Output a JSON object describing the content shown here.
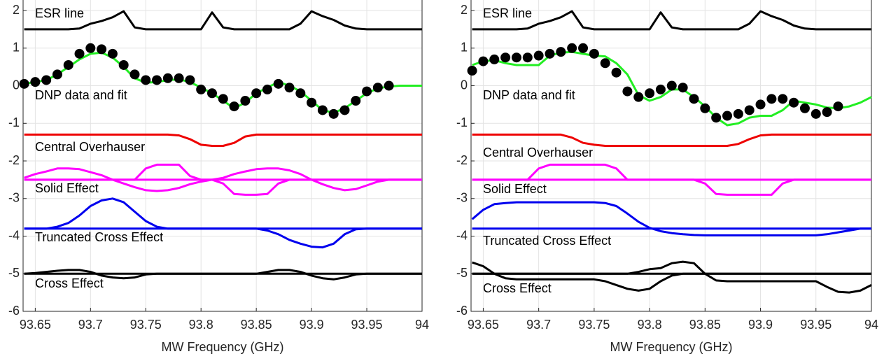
{
  "chart_data": [
    {
      "type": "line",
      "xlabel": "MW Frequency (GHz)",
      "xlim": [
        93.639,
        94
      ],
      "ylim": [
        -6,
        2.28
      ],
      "xticks": [
        93.65,
        93.7,
        93.75,
        93.8,
        93.85,
        93.9,
        93.95,
        94
      ],
      "yticks": [
        -6,
        -5,
        -4,
        -3,
        -2,
        -1,
        0,
        1,
        2
      ],
      "grid": true,
      "annotations": [
        "ESR line",
        "DNP data and fit",
        "Central Overhauser",
        "Solid Effect",
        "Truncated Cross Effect",
        "Cross Effect"
      ],
      "x": [
        93.64,
        93.65,
        93.66,
        93.67,
        93.68,
        93.69,
        93.7,
        93.71,
        93.72,
        93.73,
        93.74,
        93.75,
        93.76,
        93.77,
        93.78,
        93.79,
        93.8,
        93.81,
        93.82,
        93.83,
        93.84,
        93.85,
        93.86,
        93.87,
        93.88,
        93.89,
        93.9,
        93.91,
        93.92,
        93.93,
        93.94,
        93.95,
        93.96,
        93.97,
        93.98,
        93.99,
        94
      ],
      "series": [
        {
          "color": "#000000",
          "values": [
            1.5,
            1.5,
            1.5,
            1.5,
            1.5,
            1.52,
            1.65,
            1.72,
            1.82,
            1.98,
            1.55,
            1.5,
            1.5,
            1.5,
            1.5,
            1.5,
            1.5,
            1.95,
            1.55,
            1.5,
            1.5,
            1.5,
            1.5,
            1.5,
            1.5,
            1.65,
            1.98,
            1.85,
            1.75,
            1.6,
            1.52,
            1.5,
            1.5,
            1.5,
            1.5,
            1.5,
            1.5
          ]
        },
        {
          "color": "#22ee22",
          "values": [
            0.05,
            0.1,
            0.15,
            0.3,
            0.5,
            0.7,
            0.85,
            0.88,
            0.75,
            0.5,
            0.2,
            0.08,
            0.1,
            0.15,
            0.17,
            0.1,
            -0.05,
            -0.2,
            -0.4,
            -0.6,
            -0.45,
            -0.2,
            -0.05,
            0.1,
            0,
            -0.15,
            -0.4,
            -0.65,
            -0.72,
            -0.6,
            -0.4,
            -0.2,
            -0.07,
            -0.02,
            0,
            0,
            0
          ]
        },
        {
          "color": "#000000",
          "style": "markers",
          "values": [
            0.05,
            0.1,
            0.15,
            0.3,
            0.55,
            0.85,
            1.0,
            0.97,
            0.85,
            0.55,
            0.3,
            0.15,
            0.15,
            0.2,
            0.2,
            0.15,
            -0.1,
            -0.2,
            -0.35,
            -0.55,
            -0.4,
            -0.2,
            -0.1,
            0.05,
            -0.05,
            -0.2,
            -0.45,
            -0.65,
            -0.75,
            -0.65,
            -0.4,
            -0.15,
            -0.05,
            0,
            null,
            null,
            null
          ]
        },
        {
          "color": "#ee0000",
          "values": [
            -1.3,
            -1.3,
            -1.3,
            -1.3,
            -1.3,
            -1.3,
            -1.3,
            -1.3,
            -1.3,
            -1.3,
            -1.3,
            -1.3,
            -1.3,
            -1.3,
            -1.32,
            -1.42,
            -1.57,
            -1.6,
            -1.6,
            -1.52,
            -1.35,
            -1.3,
            -1.3,
            -1.3,
            -1.3,
            -1.3,
            -1.3,
            -1.3,
            -1.3,
            -1.3,
            -1.3,
            -1.3,
            -1.3,
            -1.3,
            -1.3,
            -1.3,
            -1.3
          ]
        },
        {
          "color": "#ff00ff",
          "values": [
            -2.5,
            -2.5,
            -2.5,
            -2.5,
            -2.5,
            -2.5,
            -2.5,
            -2.5,
            -2.5,
            -2.5,
            -2.5,
            -2.5,
            -2.5,
            -2.5,
            -2.5,
            -2.5,
            -2.5,
            -2.5,
            -2.5,
            -2.5,
            -2.5,
            -2.5,
            -2.5,
            -2.5,
            -2.5,
            -2.5,
            -2.5,
            -2.5,
            -2.5,
            -2.5,
            -2.5,
            -2.5,
            -2.5,
            -2.5,
            -2.5,
            -2.5,
            -2.5
          ]
        },
        {
          "color": "#ff00ff",
          "values": [
            -2.45,
            -2.35,
            -2.28,
            -2.2,
            -2.2,
            -2.22,
            -2.3,
            -2.38,
            -2.5,
            -2.6,
            -2.7,
            -2.78,
            -2.8,
            -2.78,
            -2.72,
            -2.62,
            -2.55,
            -2.5,
            -2.45,
            -2.35,
            -2.28,
            -2.22,
            -2.2,
            -2.2,
            -2.25,
            -2.35,
            -2.5,
            -2.62,
            -2.72,
            -2.78,
            -2.75,
            -2.65,
            -2.55,
            -2.5,
            -2.5,
            -2.5,
            -2.5
          ]
        },
        {
          "color": "#ff00ff",
          "values": [
            -2.5,
            -2.5,
            -2.5,
            -2.5,
            -2.5,
            -2.5,
            -2.5,
            -2.5,
            -2.5,
            -2.5,
            -2.5,
            -2.2,
            -2.1,
            -2.1,
            -2.1,
            -2.4,
            -2.5,
            -2.5,
            -2.6,
            -2.88,
            -2.9,
            -2.9,
            -2.88,
            -2.6,
            -2.5,
            -2.5,
            -2.5,
            -2.5,
            -2.5,
            -2.5,
            -2.5,
            -2.5,
            -2.5,
            -2.5,
            -2.5,
            -2.5,
            -2.5
          ]
        },
        {
          "color": "#0000ee",
          "values": [
            -3.8,
            -3.8,
            -3.8,
            -3.8,
            -3.8,
            -3.8,
            -3.8,
            -3.8,
            -3.8,
            -3.8,
            -3.8,
            -3.8,
            -3.8,
            -3.8,
            -3.8,
            -3.8,
            -3.8,
            -3.8,
            -3.8,
            -3.8,
            -3.8,
            -3.8,
            -3.8,
            -3.8,
            -3.8,
            -3.8,
            -3.8,
            -3.8,
            -3.8,
            -3.8,
            -3.8,
            -3.8,
            -3.8,
            -3.8,
            -3.8,
            -3.8,
            -3.8
          ]
        },
        {
          "color": "#0000ee",
          "values": [
            -3.8,
            -3.8,
            -3.8,
            -3.75,
            -3.65,
            -3.45,
            -3.2,
            -3.05,
            -3.0,
            -3.1,
            -3.35,
            -3.6,
            -3.75,
            -3.8,
            -3.8,
            -3.8,
            -3.8,
            -3.8,
            -3.8,
            -3.8,
            -3.8,
            -3.8,
            -3.85,
            -3.95,
            -4.1,
            -4.2,
            -4.28,
            -4.3,
            -4.2,
            -3.95,
            -3.82,
            -3.8,
            -3.8,
            -3.8,
            -3.8,
            -3.8,
            -3.8
          ]
        },
        {
          "color": "#000000",
          "values": [
            -5,
            -5,
            -5,
            -5,
            -5,
            -5,
            -5,
            -5,
            -5,
            -5,
            -5,
            -5,
            -5,
            -5,
            -5,
            -5,
            -5,
            -5,
            -5,
            -5,
            -5,
            -5,
            -5,
            -5,
            -5,
            -5,
            -5,
            -5,
            -5,
            -5,
            -5,
            -5,
            -5,
            -5,
            -5,
            -5,
            -5
          ]
        },
        {
          "color": "#000000",
          "values": [
            -5,
            -4.98,
            -4.95,
            -4.92,
            -4.9,
            -4.9,
            -4.95,
            -5.05,
            -5.1,
            -5.12,
            -5.1,
            -5.02,
            -5,
            -5,
            -5,
            -5,
            -5,
            -5,
            -5,
            -5,
            -5,
            -5,
            -4.95,
            -4.9,
            -4.9,
            -4.95,
            -5.05,
            -5.12,
            -5.15,
            -5.1,
            -5.02,
            -5,
            -5,
            -5,
            -5,
            -5,
            -5
          ]
        }
      ]
    },
    {
      "type": "line",
      "xlabel": "MW Frequency (GHz)",
      "xlim": [
        93.639,
        94
      ],
      "ylim": [
        -6,
        2.28
      ],
      "xticks": [
        93.65,
        93.7,
        93.75,
        93.8,
        93.85,
        93.9,
        93.95,
        94
      ],
      "yticks": [
        -6,
        -5,
        -4,
        -3,
        -2,
        -1,
        0,
        1,
        2
      ],
      "grid": true,
      "annotations": [
        "ESR line",
        "DNP data and fit",
        "Central Overhauser",
        "Solid Effect",
        "Truncated Cross Effect",
        "Cross Effect"
      ],
      "x": [
        93.64,
        93.65,
        93.66,
        93.67,
        93.68,
        93.69,
        93.7,
        93.71,
        93.72,
        93.73,
        93.74,
        93.75,
        93.76,
        93.77,
        93.78,
        93.79,
        93.8,
        93.81,
        93.82,
        93.83,
        93.84,
        93.85,
        93.86,
        93.87,
        93.88,
        93.89,
        93.9,
        93.91,
        93.92,
        93.93,
        93.94,
        93.95,
        93.96,
        93.97,
        93.98,
        93.99,
        94
      ],
      "series": [
        {
          "color": "#000000",
          "values": [
            1.5,
            1.5,
            1.5,
            1.5,
            1.5,
            1.52,
            1.65,
            1.72,
            1.82,
            1.98,
            1.55,
            1.5,
            1.5,
            1.5,
            1.5,
            1.5,
            1.5,
            1.95,
            1.55,
            1.5,
            1.5,
            1.5,
            1.5,
            1.5,
            1.5,
            1.65,
            1.98,
            1.85,
            1.75,
            1.6,
            1.52,
            1.5,
            1.5,
            1.5,
            1.5,
            1.5,
            1.5
          ]
        },
        {
          "color": "#22ee22",
          "values": [
            0.55,
            0.65,
            0.68,
            0.6,
            0.55,
            0.55,
            0.55,
            0.8,
            0.88,
            0.9,
            0.85,
            0.8,
            0.78,
            0.6,
            0.3,
            -0.25,
            -0.4,
            -0.3,
            -0.1,
            -0.1,
            -0.3,
            -0.55,
            -0.85,
            -1.05,
            -1.0,
            -0.85,
            -0.8,
            -0.8,
            -0.65,
            -0.4,
            -0.45,
            -0.5,
            -0.58,
            -0.6,
            -0.55,
            -0.45,
            -0.3
          ]
        },
        {
          "color": "#000000",
          "style": "markers",
          "values": [
            0.4,
            0.65,
            0.7,
            0.75,
            0.75,
            0.75,
            0.8,
            0.85,
            0.9,
            1.0,
            1.0,
            0.85,
            0.6,
            0.35,
            -0.15,
            -0.3,
            -0.2,
            -0.1,
            0,
            -0.05,
            -0.35,
            -0.6,
            -0.85,
            -0.8,
            -0.75,
            -0.65,
            -0.5,
            -0.35,
            -0.35,
            -0.45,
            -0.6,
            -0.75,
            -0.7,
            -0.55,
            null,
            null,
            null
          ]
        },
        {
          "color": "#ee0000",
          "values": [
            -1.3,
            -1.3,
            -1.3,
            -1.3,
            -1.3,
            -1.3,
            -1.3,
            -1.3,
            -1.3,
            -1.38,
            -1.52,
            -1.57,
            -1.6,
            -1.6,
            -1.6,
            -1.6,
            -1.6,
            -1.6,
            -1.6,
            -1.6,
            -1.6,
            -1.6,
            -1.6,
            -1.6,
            -1.55,
            -1.42,
            -1.32,
            -1.3,
            -1.3,
            -1.3,
            -1.3,
            -1.3,
            -1.3,
            -1.3,
            -1.3,
            -1.3,
            -1.3
          ]
        },
        {
          "color": "#ff00ff",
          "values": [
            -2.5,
            -2.5,
            -2.5,
            -2.5,
            -2.5,
            -2.5,
            -2.5,
            -2.5,
            -2.5,
            -2.5,
            -2.5,
            -2.5,
            -2.5,
            -2.5,
            -2.5,
            -2.5,
            -2.5,
            -2.5,
            -2.5,
            -2.5,
            -2.5,
            -2.5,
            -2.5,
            -2.5,
            -2.5,
            -2.5,
            -2.5,
            -2.5,
            -2.5,
            -2.5,
            -2.5,
            -2.5,
            -2.5,
            -2.5,
            -2.5,
            -2.5,
            -2.5
          ]
        },
        {
          "color": "#ff00ff",
          "values": [
            -2.5,
            -2.5,
            -2.5,
            -2.5,
            -2.5,
            -2.5,
            -2.2,
            -2.1,
            -2.1,
            -2.1,
            -2.1,
            -2.1,
            -2.1,
            -2.2,
            -2.5,
            -2.5,
            -2.5,
            -2.5,
            -2.5,
            -2.5,
            -2.5,
            -2.6,
            -2.88,
            -2.9,
            -2.9,
            -2.9,
            -2.9,
            -2.9,
            -2.6,
            -2.5,
            -2.5,
            -2.5,
            -2.5,
            -2.5,
            -2.5,
            -2.5,
            -2.5
          ]
        },
        {
          "color": "#0000ee",
          "values": [
            -3.8,
            -3.8,
            -3.8,
            -3.8,
            -3.8,
            -3.8,
            -3.8,
            -3.8,
            -3.8,
            -3.8,
            -3.8,
            -3.8,
            -3.8,
            -3.8,
            -3.8,
            -3.8,
            -3.8,
            -3.8,
            -3.8,
            -3.8,
            -3.8,
            -3.8,
            -3.8,
            -3.8,
            -3.8,
            -3.8,
            -3.8,
            -3.8,
            -3.8,
            -3.8,
            -3.8,
            -3.8,
            -3.8,
            -3.8,
            -3.8,
            -3.8,
            -3.8
          ]
        },
        {
          "color": "#0000ee",
          "values": [
            -3.55,
            -3.3,
            -3.15,
            -3.12,
            -3.1,
            -3.1,
            -3.1,
            -3.1,
            -3.1,
            -3.1,
            -3.1,
            -3.1,
            -3.12,
            -3.2,
            -3.4,
            -3.62,
            -3.78,
            -3.87,
            -3.92,
            -3.95,
            -3.97,
            -3.98,
            -3.98,
            -3.98,
            -3.98,
            -3.98,
            -3.98,
            -3.98,
            -3.98,
            -3.98,
            -3.98,
            -3.98,
            -3.95,
            -3.9,
            -3.85,
            -3.8,
            -3.8
          ]
        },
        {
          "color": "#000000",
          "values": [
            -5,
            -5,
            -5,
            -5,
            -5,
            -5,
            -5,
            -5,
            -5,
            -5,
            -5,
            -5,
            -5,
            -5,
            -5,
            -5,
            -5,
            -5,
            -5,
            -5,
            -5,
            -5,
            -5,
            -5,
            -5,
            -5,
            -5,
            -5,
            -5,
            -5,
            -5,
            -5,
            -5,
            -5,
            -5,
            -5,
            -5
          ]
        },
        {
          "color": "#000000",
          "values": [
            -4.7,
            -4.8,
            -5.0,
            -5.12,
            -5.15,
            -5.15,
            -5.15,
            -5.15,
            -5.15,
            -5.15,
            -5.15,
            -5.15,
            -5.2,
            -5.3,
            -5.4,
            -5.45,
            -5.4,
            -5.2,
            -5.05,
            -5,
            -5,
            -5,
            -5,
            -5,
            -5,
            -5,
            -5,
            -5,
            -5,
            -5,
            -5,
            -5,
            -5,
            -5,
            -5,
            -5,
            -5
          ]
        },
        {
          "color": "#000000",
          "values": [
            -5,
            -5,
            -5,
            -5,
            -5,
            -5,
            -5,
            -5,
            -5,
            -5,
            -5,
            -5,
            -5,
            -5,
            -5,
            -4.95,
            -4.88,
            -4.85,
            -4.72,
            -4.68,
            -4.72,
            -5.0,
            -5.18,
            -5.2,
            -5.2,
            -5.2,
            -5.2,
            -5.2,
            -5.2,
            -5.2,
            -5.2,
            -5.2,
            -5.35,
            -5.48,
            -5.5,
            -5.45,
            -5.3
          ]
        }
      ]
    }
  ]
}
